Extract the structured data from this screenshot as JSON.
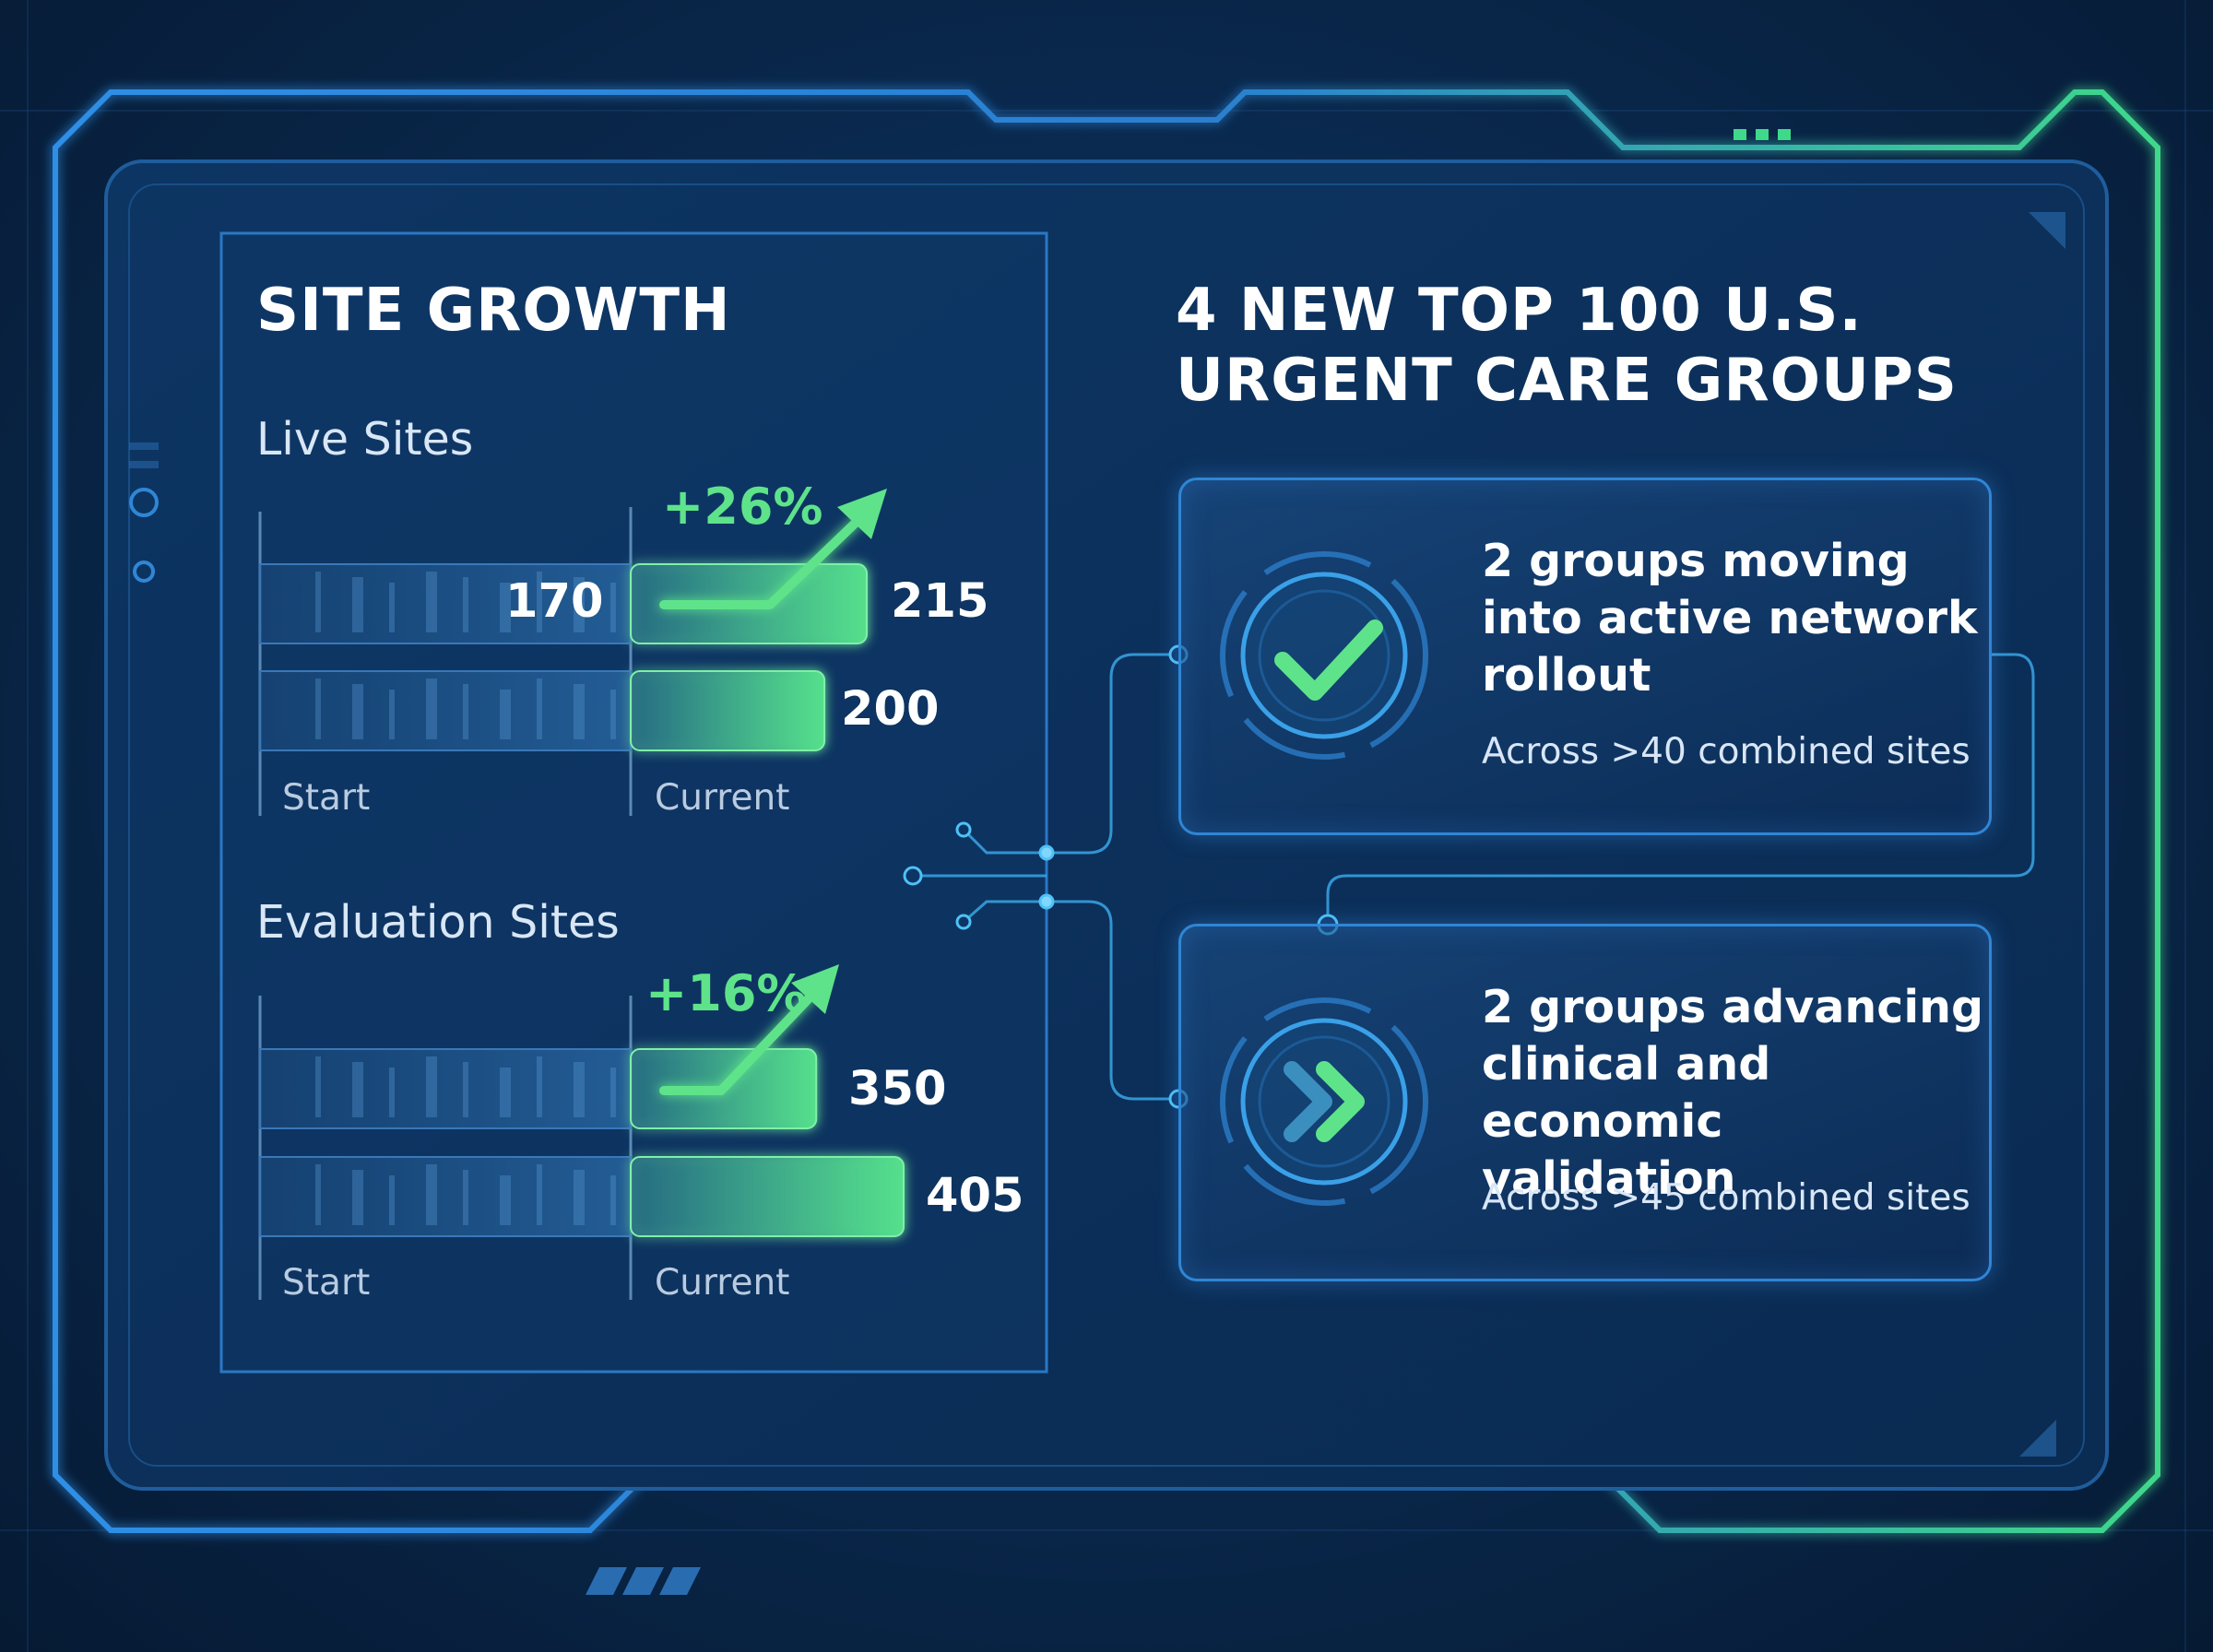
{
  "left_panel": {
    "title": "SITE GROWTH",
    "axis": {
      "start_label": "Start",
      "current_label": "Current"
    }
  },
  "chart_data": [
    {
      "type": "bar",
      "title": "Live Sites",
      "categories": [
        "Start",
        "Current"
      ],
      "values": [
        170,
        215
      ],
      "secondary_values": [
        200
      ],
      "change_label": "+26%"
    },
    {
      "type": "bar",
      "title": "Evaluation Sites",
      "categories": [
        "Start",
        "Current"
      ],
      "values": [
        350,
        405
      ],
      "change_label": "+16%"
    }
  ],
  "live_chart": {
    "label": "Live Sites",
    "pct": "+26%",
    "bar1_value": "170",
    "bar1_end_value": "215",
    "bar2_value": "200"
  },
  "eval_chart": {
    "label": "Evaluation Sites",
    "pct": "+16%",
    "bar1_value": "350",
    "bar2_value": "405"
  },
  "right_panel": {
    "title_line1": "4 NEW TOP 100 U.S.",
    "title_line2": "URGENT CARE GROUPS",
    "cards": [
      {
        "heading": "2 groups moving\ninto active network\nrollout",
        "sub": "Across >40 combined sites",
        "icon": "checkmark-icon"
      },
      {
        "heading": "2 groups advancing\nclinical and economic\nvalidation",
        "sub": "Across >45 combined sites",
        "icon": "double-chevron-right-icon"
      }
    ]
  },
  "colors": {
    "accent_green": "#5ee38a",
    "accent_blue": "#2f86d6",
    "background": "#0a2a50"
  }
}
